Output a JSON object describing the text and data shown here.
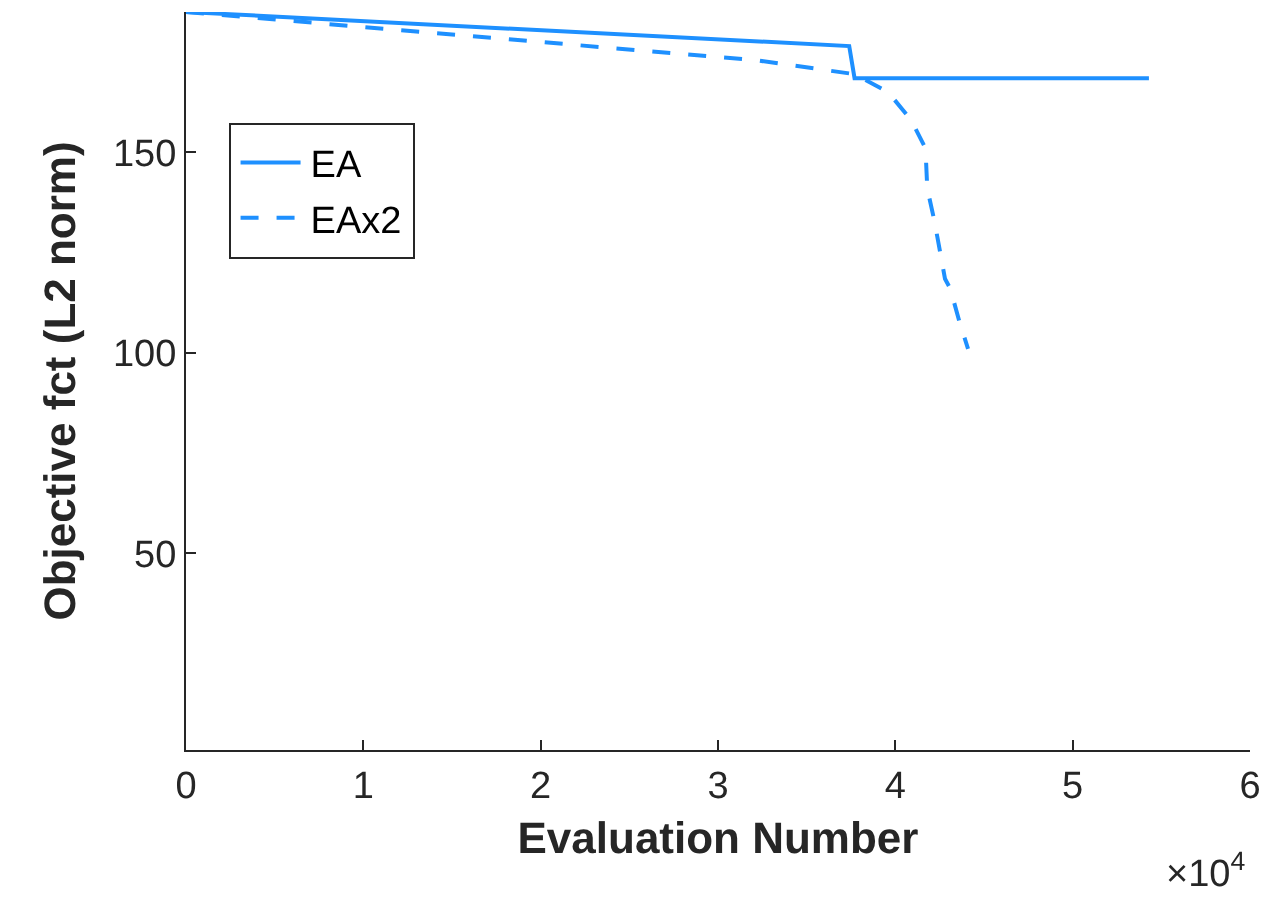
{
  "chart_data": {
    "type": "line",
    "xlabel": "Evaluation Number",
    "ylabel": "Objective fct (L2 norm)",
    "xlim": [
      0,
      6
    ],
    "xticks": [
      0,
      1,
      2,
      3,
      4,
      5,
      6
    ],
    "ylim": [
      1,
      185
    ],
    "yticks": [
      50,
      100,
      150
    ],
    "annotations": [
      "×10$^{4}$"
    ],
    "legend": "top left",
    "series": [
      {
        "name": "EA",
        "color": "#1e90ff",
        "line_style": "solid",
        "x": [
          0,
          3.74,
          3.77,
          5.43
        ],
        "values": [
          185,
          176.5,
          168.5,
          168.5
        ]
      },
      {
        "name": "EAx2",
        "color": "#1e90ff",
        "line_style": "dashed",
        "x": [
          0,
          3.21,
          3.77,
          3.96,
          4.09,
          4.17,
          4.18,
          4.22,
          4.28,
          4.31,
          4.36,
          4.41
        ],
        "values": [
          185,
          173,
          169.5,
          165,
          158,
          151,
          141,
          133,
          118.5,
          116,
          108,
          101
        ]
      }
    ]
  }
}
